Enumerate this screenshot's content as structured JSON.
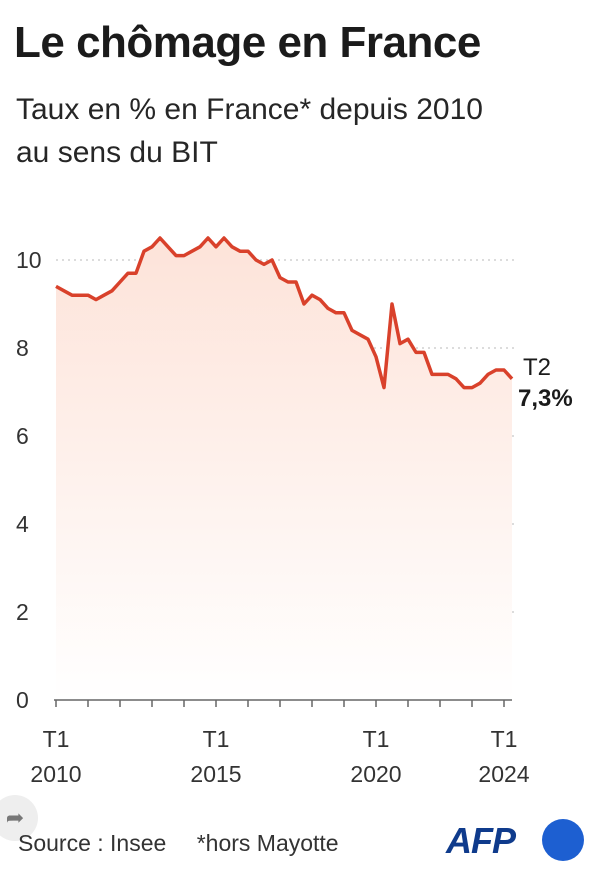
{
  "header": {
    "title": "Le chômage en France",
    "subtitle_line1": "Taux en % en France* depuis 2010",
    "subtitle_line2": "au sens du BIT"
  },
  "last_point": {
    "period": "T2",
    "value_label": "7,3%"
  },
  "footer": {
    "source": "Source : Insee",
    "note": "*hors Mayotte"
  },
  "logo": {
    "text": "AFP"
  },
  "share_icon": "share-icon",
  "colors": {
    "line": "#d9412b",
    "area_top": "#fde3d9",
    "grid": "#c8c8c8",
    "logo_dot": "#1d5fd1",
    "logo_text": "#0f3b8c"
  },
  "chart_data": {
    "type": "area",
    "title": "Le chômage en France",
    "subtitle": "Taux en % en France* depuis 2010 au sens du BIT",
    "xlabel": "",
    "ylabel": "",
    "ylim": [
      0,
      10
    ],
    "yticks": [
      0,
      2,
      4,
      6,
      8,
      10
    ],
    "grid": true,
    "x_ticks": [
      {
        "quarter": "T1",
        "year": "2010",
        "x": 2010.0
      },
      {
        "quarter": "T1",
        "year": "2015",
        "x": 2015.0
      },
      {
        "quarter": "T1",
        "year": "2020",
        "x": 2020.0
      },
      {
        "quarter": "T1",
        "year": "2024",
        "x": 2024.0
      }
    ],
    "series": [
      {
        "x": [
          2010.0,
          2010.25,
          2010.5,
          2010.75,
          2011.0,
          2011.25,
          2011.5,
          2011.75,
          2012.0,
          2012.25,
          2012.5,
          2012.75,
          2013.0,
          2013.25,
          2013.5,
          2013.75,
          2014.0,
          2014.25,
          2014.5,
          2014.75,
          2015.0,
          2015.25,
          2015.5,
          2015.75,
          2016.0,
          2016.25,
          2016.5,
          2016.75,
          2017.0,
          2017.25,
          2017.5,
          2017.75,
          2018.0,
          2018.25,
          2018.5,
          2018.75,
          2019.0,
          2019.25,
          2019.5,
          2019.75,
          2020.0,
          2020.25,
          2020.5,
          2020.75,
          2021.0,
          2021.25,
          2021.5,
          2021.75,
          2022.0,
          2022.25,
          2022.5,
          2022.75,
          2023.0,
          2023.25,
          2023.5,
          2023.75,
          2024.0,
          2024.25
        ],
        "values": [
          9.4,
          9.3,
          9.2,
          9.2,
          9.2,
          9.1,
          9.2,
          9.3,
          9.5,
          9.7,
          9.7,
          10.2,
          10.3,
          10.5,
          10.3,
          10.1,
          10.1,
          10.2,
          10.3,
          10.5,
          10.3,
          10.5,
          10.3,
          10.2,
          10.2,
          10.0,
          9.9,
          10.0,
          9.6,
          9.5,
          9.5,
          9.0,
          9.2,
          9.1,
          8.9,
          8.8,
          8.8,
          8.4,
          8.3,
          8.2,
          7.8,
          7.1,
          9.0,
          8.1,
          8.2,
          7.9,
          7.9,
          7.4,
          7.4,
          7.4,
          7.3,
          7.1,
          7.1,
          7.2,
          7.4,
          7.5,
          7.5,
          7.3
        ]
      }
    ]
  }
}
